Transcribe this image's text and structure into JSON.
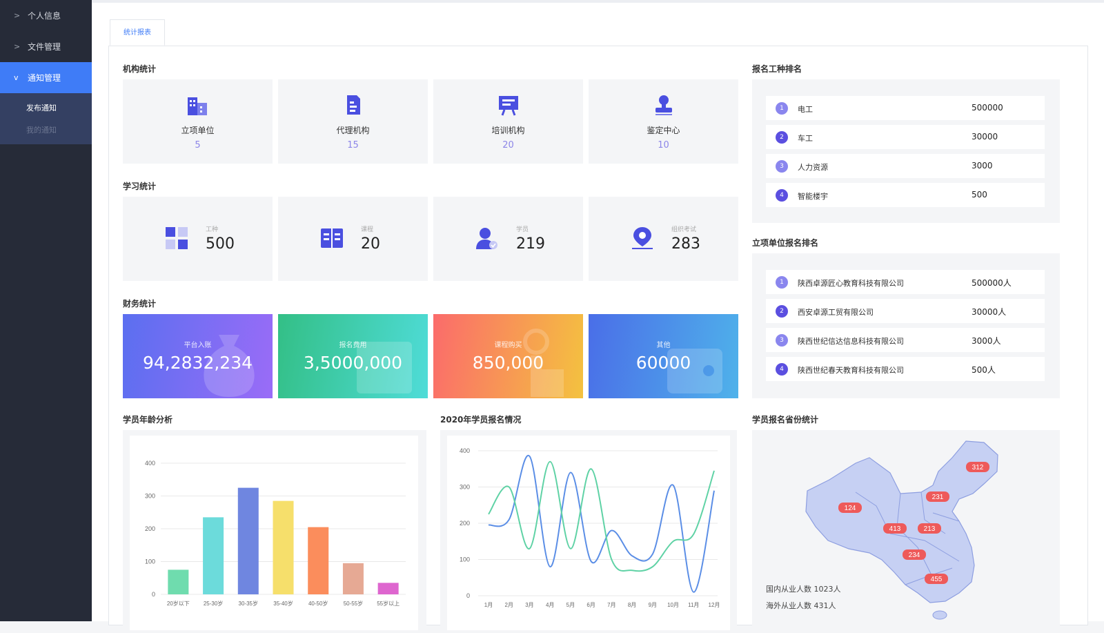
{
  "sidebar": {
    "items": [
      {
        "label": "个人信息",
        "chevron": ">",
        "active": false
      },
      {
        "label": "文件管理",
        "chevron": ">",
        "active": false
      },
      {
        "label": "通知管理",
        "chevron": "v",
        "active": true
      }
    ],
    "sub_items": [
      {
        "label": "发布通知"
      },
      {
        "label": "我的通知"
      }
    ]
  },
  "tab": {
    "label": "统计报表"
  },
  "org_stats": {
    "title": "机构统计",
    "cards": [
      {
        "label": "立项单位",
        "value": "5",
        "icon": "buildings-icon"
      },
      {
        "label": "代理机构",
        "value": "15",
        "icon": "document-building-icon"
      },
      {
        "label": "培训机构",
        "value": "20",
        "icon": "presentation-board-icon"
      },
      {
        "label": "鉴定中心",
        "value": "10",
        "icon": "stamp-icon"
      }
    ]
  },
  "study_stats": {
    "title": "学习统计",
    "cards": [
      {
        "label": "工种",
        "value": "500",
        "icon": "grid-blocks-icon"
      },
      {
        "label": "课程",
        "value": "20",
        "icon": "open-book-icon"
      },
      {
        "label": "学员",
        "value": "219",
        "icon": "student-icon"
      },
      {
        "label": "组织考试",
        "value": "283",
        "icon": "location-pin-icon"
      }
    ]
  },
  "finance_stats": {
    "title": "财务统计",
    "cards": [
      {
        "label": "平台入账",
        "value": "94,2832,234",
        "gradient": [
          "#5b6ff0",
          "#9a6cf7"
        ],
        "icon": "money-bag-icon"
      },
      {
        "label": "报名费用",
        "value": "3,5000,000",
        "gradient": [
          "#33bf86",
          "#4fdcd8"
        ],
        "icon": "coupon-icon"
      },
      {
        "label": "课程购买",
        "value": "850,000",
        "gradient": [
          "#fb6b6b",
          "#f4c23f"
        ],
        "icon": "hand-tap-icon"
      },
      {
        "label": "其他",
        "value": "60000",
        "gradient": [
          "#4a6ee8",
          "#4fb2ea"
        ],
        "icon": "wallet-icon"
      }
    ]
  },
  "job_ranking": {
    "title": "报名工种排名",
    "rows": [
      {
        "rank": "1",
        "name": "电工",
        "value": "500000"
      },
      {
        "rank": "2",
        "name": "车工",
        "value": "30000"
      },
      {
        "rank": "3",
        "name": "人力资源",
        "value": "3000"
      },
      {
        "rank": "4",
        "name": "智能楼宇",
        "value": "500"
      }
    ]
  },
  "unit_ranking": {
    "title": "立项单位报名排名",
    "rows": [
      {
        "rank": "1",
        "name": "陕西卓源匠心教育科技有限公司",
        "value": "500000人"
      },
      {
        "rank": "2",
        "name": "西安卓源工贸有限公司",
        "value": "30000人"
      },
      {
        "rank": "3",
        "name": "陕西世纪信达信息科技有限公司",
        "value": "3000人"
      },
      {
        "rank": "4",
        "name": "陕西世纪春天教育科技有限公司",
        "value": "500人"
      }
    ]
  },
  "map_section": {
    "title": "学员报名省份统计",
    "domestic": "国内从业人数 1023人",
    "overseas": "海外从业人数 431人",
    "markers": [
      "312",
      "231",
      "124",
      "413",
      "213",
      "234",
      "455"
    ]
  },
  "chart_data": [
    {
      "type": "bar",
      "title": "学员年龄分析",
      "categories": [
        "20岁以下",
        "25-30岁",
        "30-35岁",
        "35-40岁",
        "40-50岁",
        "50-55岁",
        "55岁以上"
      ],
      "values": [
        75,
        235,
        325,
        285,
        205,
        95,
        35
      ],
      "colors": [
        "#6fdcae",
        "#6cdbdb",
        "#6f86e0",
        "#f6df6b",
        "#fb8d5c",
        "#e6a994",
        "#de66cf"
      ],
      "yticks": [
        "0",
        "100",
        "200",
        "300",
        "400"
      ],
      "ylim": [
        0,
        400
      ]
    },
    {
      "type": "line",
      "title": "2020年学员报名情况",
      "categories": [
        "1月",
        "2月",
        "3月",
        "4月",
        "5月",
        "6月",
        "7月",
        "8月",
        "9月",
        "10月",
        "11月",
        "12月"
      ],
      "yticks": [
        "0",
        "100",
        "200",
        "300",
        "400"
      ],
      "ylim": [
        0,
        400
      ],
      "series": [
        {
          "color": "#5b8ee6",
          "values": [
            195,
            210,
            385,
            80,
            340,
            95,
            180,
            110,
            115,
            305,
            10,
            290
          ]
        },
        {
          "color": "#5fd2a5",
          "values": [
            225,
            300,
            130,
            370,
            130,
            350,
            100,
            70,
            80,
            150,
            170,
            345
          ]
        }
      ]
    }
  ]
}
